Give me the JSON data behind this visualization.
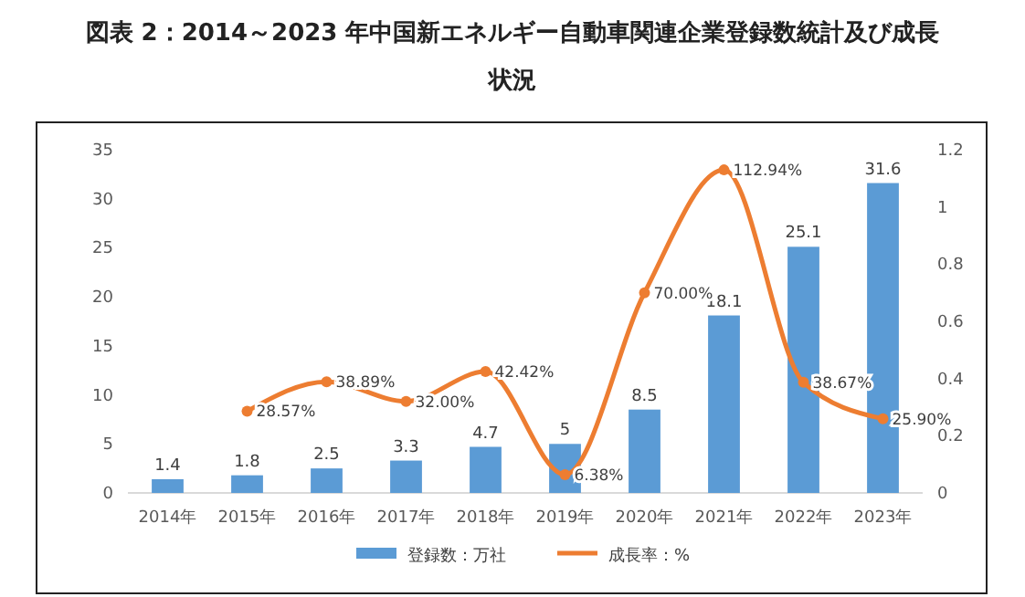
{
  "chart_data": {
    "type": "bar",
    "title": "図表 2：2014～2023 年中国新エネルギー自動車関連企業登録数統計及び成長状況",
    "categories": [
      "2014年",
      "2015年",
      "2016年",
      "2017年",
      "2018年",
      "2019年",
      "2020年",
      "2021年",
      "2022年",
      "2023年"
    ],
    "series": [
      {
        "name": "登録数：万社",
        "color": "#5b9bd5",
        "values": [
          1.4,
          1.8,
          2.5,
          3.3,
          4.7,
          5,
          8.5,
          18.1,
          25.1,
          31.6
        ],
        "value_labels": [
          "1.4",
          "1.8",
          "2.5",
          "3.3",
          "4.7",
          "5",
          "8.5",
          "18.1",
          "25.1",
          "31.6"
        ]
      },
      {
        "name": "成長率：%",
        "type": "line",
        "axis": "y2",
        "color": "#ed7d31",
        "marker": "circle",
        "values": [
          null,
          0.2857,
          0.3889,
          0.32,
          0.4242,
          0.0638,
          0.7,
          1.1294,
          0.3867,
          0.259
        ],
        "value_labels": [
          null,
          "28.57%",
          "38.89%",
          "32.00%",
          "42.42%",
          "6.38%",
          "70.00%",
          "112.94%",
          "38.67%",
          "25.90%"
        ]
      }
    ],
    "ylim": [
      0,
      35
    ],
    "yticks": [
      0,
      5,
      10,
      15,
      20,
      25,
      30,
      35
    ],
    "y2lim": [
      0,
      1.2
    ],
    "y2ticks": [
      0,
      0.2,
      0.4,
      0.6,
      0.8,
      1,
      1.2
    ],
    "legend": "bottom"
  }
}
